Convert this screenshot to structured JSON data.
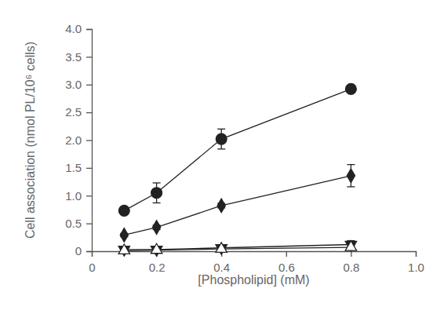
{
  "chart_data": {
    "type": "line",
    "x_label": "[Phospholipid]  (mM)",
    "y_label": "Cell association (nmol PL/10⁶ cells)",
    "x": [
      0.1,
      0.2,
      0.4,
      0.8
    ],
    "xlim": [
      0,
      1
    ],
    "xticks": [
      0,
      0.2,
      0.4,
      0.6,
      0.8,
      {
        "value": 1,
        "label": "1.0"
      }
    ],
    "ylim": [
      0,
      4
    ],
    "yticks": [
      0,
      0.5,
      {
        "value": 1,
        "label": "1.0"
      },
      1.5,
      {
        "value": 2,
        "label": "2.0"
      },
      2.5,
      {
        "value": 3,
        "label": "3.0"
      },
      3.5,
      {
        "value": 4,
        "label": "4.0"
      }
    ],
    "grid": false,
    "series": [
      {
        "color": "#222222",
        "marker": "circle",
        "values": [
          0.73,
          1.05,
          2.02,
          2.92
        ],
        "errors": [
          0.03,
          0.18,
          0.18,
          0.05
        ]
      },
      {
        "color": "#222222",
        "marker": "diamond",
        "values": [
          0.29,
          0.43,
          0.82,
          1.36
        ],
        "errors": [
          0.03,
          0.04,
          0.04,
          0.2
        ]
      },
      {
        "color": "#222222",
        "marker": "triangle-down",
        "values": [
          0.03,
          0.03,
          0.06,
          0.12
        ],
        "errors": [
          0.01,
          0.01,
          0.02,
          0.07
        ]
      },
      {
        "color": "#222222",
        "marker": "triangle-open",
        "values": [
          0.01,
          0.02,
          0.04,
          0.07
        ],
        "errors": [
          0.01,
          0.01,
          0.01,
          0.03
        ]
      }
    ]
  }
}
